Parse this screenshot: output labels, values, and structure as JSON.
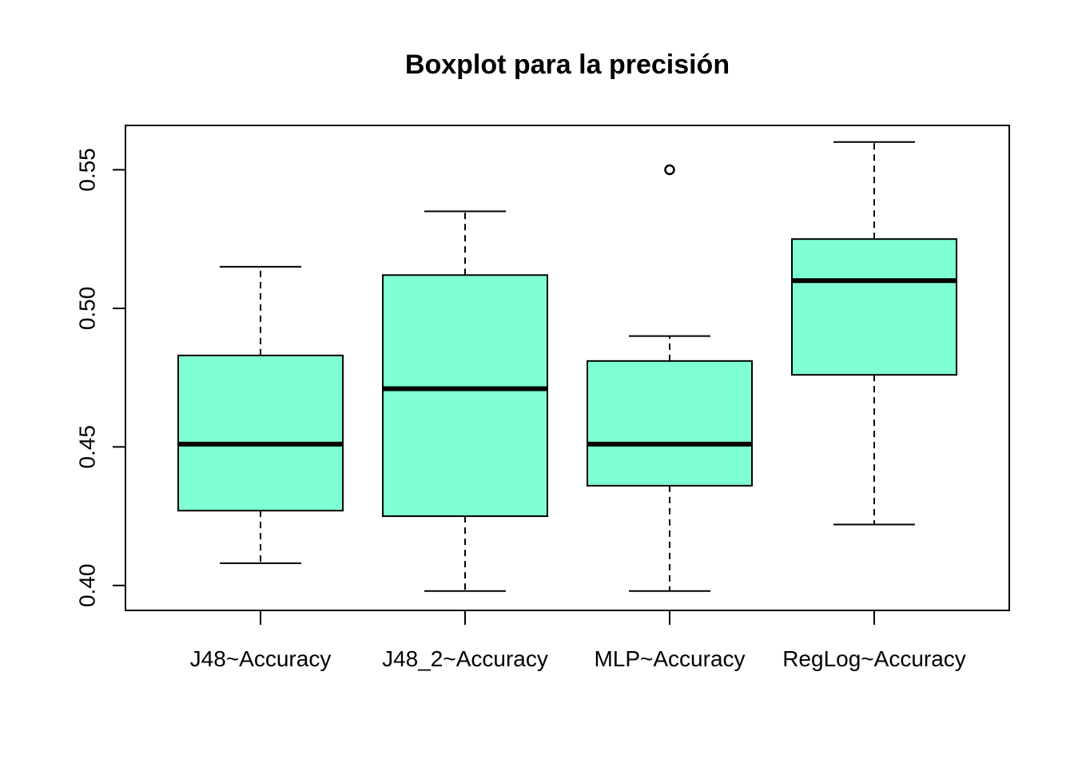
{
  "chart_data": {
    "type": "boxplot",
    "title": "Boxplot para la precisión",
    "xlabel": "",
    "ylabel": "",
    "ylim": [
      0.391,
      0.566
    ],
    "y_ticks": [
      0.4,
      0.45,
      0.5,
      0.55
    ],
    "y_tick_labels": [
      "0.40",
      "0.45",
      "0.50",
      "0.55"
    ],
    "grid": false,
    "box_color": "#7FFFD4",
    "line_color": "#000000",
    "categories": [
      "J48~Accuracy",
      "J48_2~Accuracy",
      "MLP~Accuracy",
      "RegLog~Accuracy"
    ],
    "boxes": [
      {
        "whisker_low": 0.408,
        "q1": 0.427,
        "median": 0.451,
        "q3": 0.483,
        "whisker_high": 0.515,
        "outliers": []
      },
      {
        "whisker_low": 0.398,
        "q1": 0.425,
        "median": 0.471,
        "q3": 0.512,
        "whisker_high": 0.535,
        "outliers": []
      },
      {
        "whisker_low": 0.398,
        "q1": 0.436,
        "median": 0.451,
        "q3": 0.481,
        "whisker_high": 0.49,
        "outliers": [
          0.55
        ]
      },
      {
        "whisker_low": 0.422,
        "q1": 0.476,
        "median": 0.51,
        "q3": 0.525,
        "whisker_high": 0.56,
        "outliers": []
      }
    ]
  }
}
